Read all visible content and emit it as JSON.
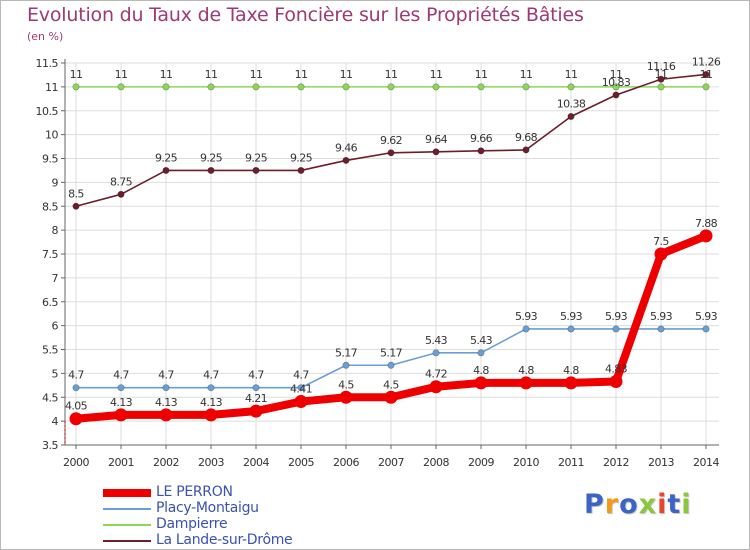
{
  "title": "Evolution du Taux de Taxe Foncière sur les Propriétés Bâties",
  "unit": "(en %)",
  "logo": "Proxiti",
  "colors": {
    "title": "#9e3a73",
    "grid": "#dddddd",
    "legend_text": "#3a52b0",
    "logo": [
      "#3c63c6",
      "#f39a1c",
      "#3c63c6",
      "#8cc63f",
      "#e8462e",
      "#3c63c6",
      "#8cc63f"
    ]
  },
  "chart_data": {
    "type": "line",
    "title": "Evolution du Taux de Taxe Foncière sur les Propriétés Bâties",
    "ylabel": "(en %)",
    "xlabel": "",
    "grid": true,
    "legend_position": "bottom-left",
    "ylim": [
      3.5,
      11.5
    ],
    "yticks": [
      "3.5",
      "4",
      "4.5",
      "5",
      "5.5",
      "6",
      "6.5",
      "7",
      "7.5",
      "8",
      "8.5",
      "9",
      "9.5",
      "10",
      "10.5",
      "11",
      "11.5"
    ],
    "categories": [
      "2000",
      "2001",
      "2002",
      "2003",
      "2004",
      "2005",
      "2006",
      "2007",
      "2008",
      "2009",
      "2010",
      "2011",
      "2012",
      "2013",
      "2014"
    ],
    "series": [
      {
        "name": "Dampierre",
        "color": "#8dd65a",
        "values": [
          11,
          11,
          11,
          11,
          11,
          11,
          11,
          11,
          11,
          11,
          11,
          11,
          11,
          11,
          11
        ],
        "labels": [
          "11",
          "11",
          "11",
          "11",
          "11",
          "11",
          "11",
          "11",
          "11",
          "11",
          "11",
          "11",
          "11",
          "11",
          "11"
        ]
      },
      {
        "name": "La Lande-sur-Drôme",
        "color": "#6b1f2b",
        "values": [
          8.5,
          8.75,
          9.25,
          9.25,
          9.25,
          9.25,
          9.46,
          9.62,
          9.64,
          9.66,
          9.68,
          10.38,
          10.83,
          11.16,
          11.26
        ],
        "labels": [
          "8.5",
          "8.75",
          "9.25",
          "9.25",
          "9.25",
          "9.25",
          "9.46",
          "9.62",
          "9.64",
          "9.66",
          "9.68",
          "10.38",
          "10.83",
          "11.16",
          "11.26"
        ]
      },
      {
        "name": "Placy-Montaigu",
        "color": "#6a9fd4",
        "values": [
          4.7,
          4.7,
          4.7,
          4.7,
          4.7,
          4.7,
          5.17,
          5.17,
          5.43,
          5.43,
          5.93,
          5.93,
          5.93,
          5.93,
          5.93
        ],
        "labels": [
          "4.7",
          "4.7",
          "4.7",
          "4.7",
          "4.7",
          "4.7",
          "5.17",
          "5.17",
          "5.43",
          "5.43",
          "5.93",
          "5.93",
          "5.93",
          "5.93",
          "5.93"
        ]
      },
      {
        "name": "LE PERRON",
        "color": "#ee0000",
        "values": [
          4.05,
          4.13,
          4.13,
          4.13,
          4.21,
          4.41,
          4.5,
          4.5,
          4.72,
          4.8,
          4.8,
          4.8,
          4.83,
          7.5,
          7.88
        ],
        "labels": [
          "4.05",
          "4.13",
          "4.13",
          "4.13",
          "4.21",
          "4.41",
          "4.5",
          "4.5",
          "4.72",
          "4.8",
          "4.8",
          "4.8",
          "4.83",
          "7.5",
          "7.88"
        ]
      }
    ],
    "legend": [
      "LE PERRON",
      "Placy-Montaigu",
      "Dampierre",
      "La Lande-sur-Drôme"
    ]
  }
}
